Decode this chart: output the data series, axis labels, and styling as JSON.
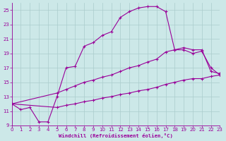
{
  "xlabel": "Windchill (Refroidissement éolien,°C)",
  "background_color": "#cce8e8",
  "grid_color": "#aacccc",
  "line_color": "#990099",
  "xlim": [
    0,
    23
  ],
  "ylim": [
    9,
    26
  ],
  "xticks": [
    0,
    1,
    2,
    3,
    4,
    5,
    6,
    7,
    8,
    9,
    10,
    11,
    12,
    13,
    14,
    15,
    16,
    17,
    18,
    19,
    20,
    21,
    22,
    23
  ],
  "yticks": [
    9,
    11,
    13,
    15,
    17,
    19,
    21,
    23,
    25
  ],
  "series1_x": [
    0,
    1,
    2,
    3,
    4,
    5,
    6,
    7,
    8,
    9,
    10,
    11,
    12,
    13,
    14,
    15,
    16,
    17,
    18,
    19,
    20,
    21,
    22,
    23
  ],
  "series1_y": [
    12.0,
    11.2,
    11.5,
    9.5,
    9.5,
    13.0,
    17.0,
    17.2,
    20.0,
    20.5,
    21.5,
    22.0,
    24.0,
    24.8,
    25.3,
    25.5,
    25.5,
    24.8,
    19.5,
    19.5,
    19.0,
    19.3,
    17.0,
    16.0
  ],
  "series2_x": [
    0,
    5,
    6,
    7,
    8,
    9,
    10,
    11,
    12,
    13,
    14,
    15,
    16,
    17,
    18,
    19,
    20,
    21,
    22,
    23
  ],
  "series2_y": [
    12.0,
    13.5,
    14.0,
    14.5,
    15.0,
    15.3,
    15.7,
    16.0,
    16.5,
    17.0,
    17.3,
    17.8,
    18.2,
    19.2,
    19.5,
    19.8,
    19.5,
    19.5,
    16.5,
    16.2
  ],
  "series3_x": [
    0,
    5,
    6,
    7,
    8,
    9,
    10,
    11,
    12,
    13,
    14,
    15,
    16,
    17,
    18,
    19,
    20,
    21,
    22,
    23
  ],
  "series3_y": [
    12.0,
    11.5,
    11.8,
    12.0,
    12.3,
    12.5,
    12.8,
    13.0,
    13.3,
    13.5,
    13.8,
    14.0,
    14.3,
    14.7,
    15.0,
    15.3,
    15.5,
    15.5,
    15.8,
    16.0
  ]
}
